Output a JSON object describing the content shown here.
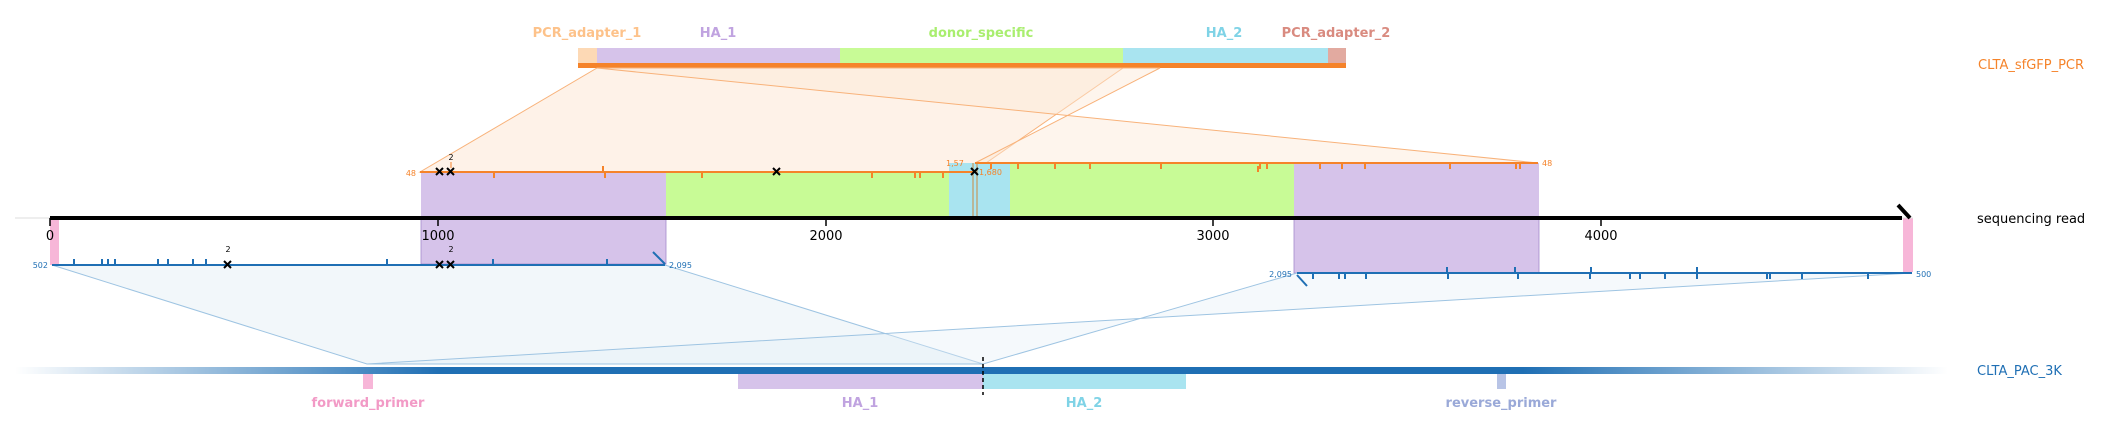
{
  "pcr_product": {
    "name": "CLTA_sfGFP_PCR",
    "features": [
      {
        "label": "PCR_adapter_1",
        "color": "#fdd9b5",
        "label_color": "#fdc28a"
      },
      {
        "label": "HA_1",
        "color": "#d6c3ea",
        "label_color": "#c0a3e0"
      },
      {
        "label": "donor_specific",
        "color": "#c8fb96",
        "label_color": "#a9ee6f"
      },
      {
        "label": "HA_2",
        "color": "#a9e4f0",
        "label_color": "#7fd3e6"
      },
      {
        "label": "PCR_adapter_2",
        "color": "#e2aaa0",
        "label_color": "#d98b80"
      }
    ],
    "strand_color": "#f5832a"
  },
  "read": {
    "name": "sequencing read",
    "axis_ticks": [
      "0",
      "1000",
      "2000",
      "3000",
      "4000"
    ],
    "upper_alignment": {
      "left_label": "48",
      "right_label": "48",
      "junction_left": "1,57",
      "junction_right": "1,680",
      "marker_count": "2"
    },
    "lower_alignment": {
      "left_start": "502",
      "left_end": "2,095",
      "right_start": "2,095",
      "right_end": "500",
      "marker_count_1": "2",
      "marker_count_2": "2"
    }
  },
  "reference": {
    "name": "CLTA_PAC_3K",
    "color": "#1f6fb4",
    "features": [
      {
        "label": "forward_primer",
        "color": "#f7b6d8",
        "label_color": "#f29ac6"
      },
      {
        "label": "HA_1",
        "color": "#d6c3ea",
        "label_color": "#c0a3e0"
      },
      {
        "label": "HA_2",
        "color": "#a9e4f0",
        "label_color": "#7fd3e6"
      },
      {
        "label": "reverse_primer",
        "color": "#b8c4e6",
        "label_color": "#9aa9d8"
      }
    ]
  }
}
